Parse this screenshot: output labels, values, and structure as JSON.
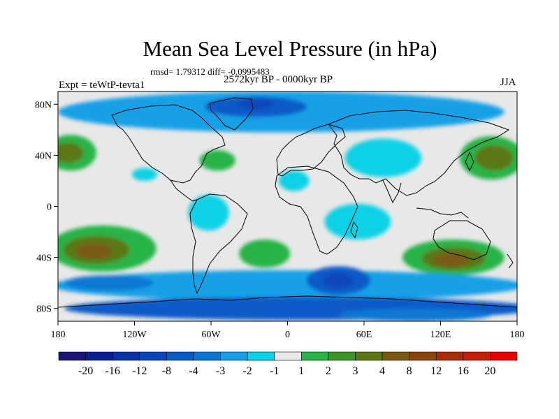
{
  "header": {
    "title": "Mean Sea Level Pressure (in hPa)",
    "stats": "rmsd= 1.79312 diff= -0.0995483",
    "period": "2572kyr BP - 0000kyr BP",
    "experiment": "Expt = teWtP-tevta1",
    "season": "JJA"
  },
  "chart_data": {
    "type": "heatmap",
    "title": "Mean Sea Level Pressure (in hPa)",
    "subtitle": "2572kyr BP - 0000kyr BP",
    "projection": "cylindrical-equidistant",
    "xlim": [
      -180,
      180
    ],
    "ylim": [
      -90,
      90
    ],
    "x_ticks": [
      {
        "value": -180,
        "label": "180"
      },
      {
        "value": -120,
        "label": "120W"
      },
      {
        "value": -60,
        "label": "60W"
      },
      {
        "value": 0,
        "label": "0"
      },
      {
        "value": 60,
        "label": "60E"
      },
      {
        "value": 120,
        "label": "120E"
      },
      {
        "value": 180,
        "label": "180"
      }
    ],
    "y_ticks": [
      {
        "value": 80,
        "label": "80N"
      },
      {
        "value": 40,
        "label": "40N"
      },
      {
        "value": 0,
        "label": "0"
      },
      {
        "value": -40,
        "label": "40S"
      },
      {
        "value": -80,
        "label": "80S"
      }
    ],
    "background_color": "#e8e8e8",
    "colorbar": {
      "labels": [
        "-20",
        "-16",
        "-12",
        "-8",
        "-4",
        "-3",
        "-2",
        "-1",
        "1",
        "2",
        "3",
        "4",
        "8",
        "12",
        "16",
        "20"
      ],
      "colors": [
        "#1a1478",
        "#0a1e96",
        "#0a32aa",
        "#0a46b9",
        "#0a5ac8",
        "#0a78d2",
        "#14a0e6",
        "#0ad2e6",
        "#e8e8e8",
        "#28b446",
        "#3c9628",
        "#5a7814",
        "#7a5a14",
        "#8c460a",
        "#aa2d0a",
        "#c81e0a",
        "#e60000"
      ]
    },
    "regions": [
      {
        "name": "arctic-band",
        "lon": -5,
        "lat": 74,
        "rlon": 175,
        "rlat": 16,
        "color": "#14a0e6"
      },
      {
        "name": "arctic-core",
        "lon": -25,
        "lat": 78,
        "rlon": 40,
        "rlat": 8,
        "color": "#0a5ac8"
      },
      {
        "name": "arctic-deep",
        "lon": -25,
        "lat": 80,
        "rlon": 14,
        "rlat": 4,
        "color": "#0a46b9"
      },
      {
        "name": "asia-low",
        "lon": 75,
        "lat": 38,
        "rlon": 30,
        "rlat": 15,
        "color": "#0ad2e6"
      },
      {
        "name": "sahara-low",
        "lon": 5,
        "lat": 20,
        "rlon": 12,
        "rlat": 8,
        "color": "#0ad2e6"
      },
      {
        "name": "amazon-low",
        "lon": -62,
        "lat": -5,
        "rlon": 16,
        "rlat": 14,
        "color": "#0ad2e6"
      },
      {
        "name": "mexico-low",
        "lon": -112,
        "lat": 25,
        "rlon": 10,
        "rlat": 5,
        "color": "#0ad2e6"
      },
      {
        "name": "indian-ocean-low",
        "lon": 55,
        "lat": -12,
        "rlon": 26,
        "rlat": 14,
        "color": "#0ad2e6"
      },
      {
        "name": "north-pacific-high-west",
        "lon": -170,
        "lat": 42,
        "rlon": 20,
        "rlat": 14,
        "color": "#28b446"
      },
      {
        "name": "north-pacific-high-west-core",
        "lon": -172,
        "lat": 42,
        "rlon": 12,
        "rlat": 8,
        "color": "#5a7814"
      },
      {
        "name": "north-atlantic-high",
        "lon": -55,
        "lat": 36,
        "rlon": 14,
        "rlat": 8,
        "color": "#28b446"
      },
      {
        "name": "north-pacific-high-east",
        "lon": 160,
        "lat": 38,
        "rlon": 25,
        "rlat": 17,
        "color": "#28b446"
      },
      {
        "name": "north-pacific-high-east-core",
        "lon": 162,
        "lat": 38,
        "rlon": 15,
        "rlat": 10,
        "color": "#5a7814"
      },
      {
        "name": "south-pacific-high",
        "lon": -145,
        "lat": -33,
        "rlon": 42,
        "rlat": 18,
        "color": "#28b446"
      },
      {
        "name": "south-pacific-high-core",
        "lon": -150,
        "lat": -34,
        "rlon": 26,
        "rlat": 11,
        "color": "#5a7814"
      },
      {
        "name": "south-pacific-high-inner",
        "lon": -152,
        "lat": -35,
        "rlon": 14,
        "rlat": 6,
        "color": "#7a5a14"
      },
      {
        "name": "south-atlantic-high",
        "lon": -18,
        "lat": -37,
        "rlon": 20,
        "rlat": 11,
        "color": "#28b446"
      },
      {
        "name": "australia-high",
        "lon": 130,
        "lat": -40,
        "rlon": 40,
        "rlat": 14,
        "color": "#28b446"
      },
      {
        "name": "australia-high-core",
        "lon": 130,
        "lat": -41,
        "rlon": 25,
        "rlat": 9,
        "color": "#5a7814"
      },
      {
        "name": "australia-high-inner",
        "lon": 128,
        "lat": -42,
        "rlon": 14,
        "rlat": 5,
        "color": "#7a5a14"
      },
      {
        "name": "southern-ocean-band",
        "lon": 0,
        "lat": -62,
        "rlon": 185,
        "rlat": 12,
        "color": "#14a0e6"
      },
      {
        "name": "southern-ocean-west",
        "lon": -140,
        "lat": -60,
        "rlon": 35,
        "rlat": 6,
        "color": "#0a78d2"
      },
      {
        "name": "southern-ocean-indian",
        "lon": 40,
        "lat": -58,
        "rlon": 25,
        "rlat": 11,
        "color": "#0a5ac8"
      },
      {
        "name": "southern-ocean-indian-core",
        "lon": 40,
        "lat": -58,
        "rlon": 12,
        "rlat": 6,
        "color": "#0a46b9"
      },
      {
        "name": "antarctic-coast",
        "lon": 10,
        "lat": -80,
        "rlon": 185,
        "rlat": 9,
        "color": "#0a5ac8"
      },
      {
        "name": "antarctic-interior",
        "lon": 100,
        "lat": -85,
        "rlon": 60,
        "rlat": 5,
        "color": "#0a78d2"
      }
    ]
  }
}
